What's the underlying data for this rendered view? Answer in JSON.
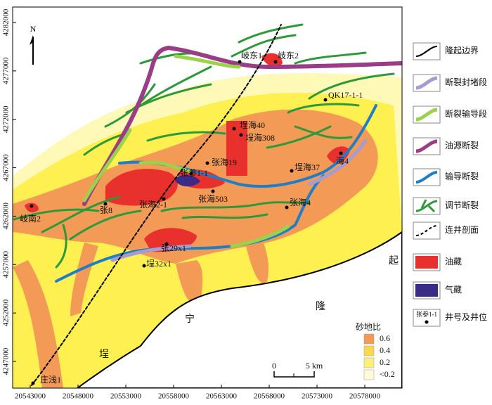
{
  "map": {
    "north": "N",
    "yticks": [
      4282000,
      4277000,
      4272000,
      4267000,
      4262000,
      4257000,
      4252000,
      4247000
    ],
    "xticks": [
      20543000,
      20548000,
      20553000,
      20558000,
      20563000,
      20568000,
      20573000,
      20578000
    ],
    "wells": [
      "岐东1",
      "岐东2",
      "QK17-1-1",
      "埕海40",
      "埕海308",
      "张海19",
      "张参1-1",
      "埕海37",
      "海4",
      "张海503",
      "张海2-1",
      "张8",
      "张海4",
      "岐南2",
      "张29x1",
      "埕32x1",
      "庄浅1"
    ],
    "regions": [
      "起",
      "隆",
      "宁",
      "埕"
    ],
    "legend": [
      "隆起边界",
      "断裂封堵段",
      "断裂输导段",
      "油源断裂",
      "输导断裂",
      "调节断裂",
      "连井剖面",
      "油藏",
      "气藏",
      "井号及井位"
    ],
    "legend_well_sample": "张参1-1",
    "sand_legend": {
      "title": "砂地比",
      "labels": [
        "0.6",
        "0.4",
        "0.2",
        "<0.2"
      ]
    },
    "scale_bar": {
      "start": "0",
      "end": "5 km"
    }
  }
}
